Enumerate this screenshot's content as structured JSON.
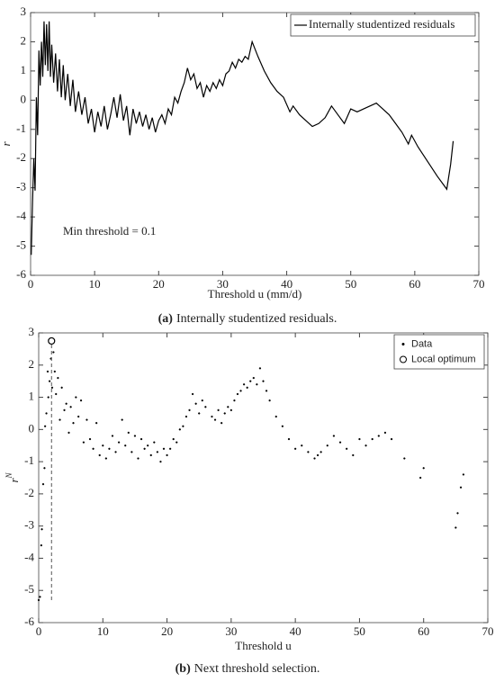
{
  "chart_data": [
    {
      "type": "line",
      "caption_label": "(a)",
      "caption": "Internally studentized residuals.",
      "xlabel": "Threshold u (mm/d)",
      "ylabel": "r",
      "annotation": "Min threshold = 0.1",
      "xlim": [
        0,
        70
      ],
      "xticks": [
        0,
        10,
        20,
        30,
        40,
        50,
        60,
        70
      ],
      "ylim": [
        -6,
        3
      ],
      "yticks": [
        -6,
        -5,
        -4,
        -3,
        -2,
        -1,
        0,
        1,
        2,
        3
      ],
      "legend": "upper right",
      "grid": false,
      "series": [
        {
          "name": "Internally studentized residuals",
          "color": "#000000",
          "x": [
            0.1,
            0.3,
            0.5,
            0.7,
            0.9,
            1.1,
            1.3,
            1.5,
            1.7,
            1.9,
            2.1,
            2.3,
            2.5,
            2.7,
            2.9,
            3.1,
            3.3,
            3.6,
            3.9,
            4.2,
            4.5,
            4.8,
            5.1,
            5.4,
            5.8,
            6.2,
            6.6,
            7,
            7.5,
            8,
            8.5,
            9,
            9.5,
            10,
            10.5,
            11,
            11.5,
            12,
            12.5,
            13,
            13.5,
            14,
            14.5,
            15,
            15.5,
            16,
            16.5,
            17,
            17.5,
            18,
            18.5,
            19,
            19.5,
            20,
            20.5,
            21,
            21.5,
            22,
            22.5,
            23,
            23.5,
            24,
            24.5,
            25,
            25.5,
            26,
            26.5,
            27,
            27.5,
            28,
            28.5,
            29,
            29.5,
            30,
            30.5,
            31,
            31.5,
            32,
            32.5,
            33,
            33.5,
            34,
            34.6,
            35.5,
            36.5,
            37.5,
            38.5,
            39.5,
            40.5,
            41,
            42,
            43,
            44,
            45,
            46,
            47,
            48,
            49,
            50,
            51,
            52,
            53,
            54,
            55,
            56,
            57,
            58,
            59,
            59.5,
            60.5,
            62,
            63.5,
            65,
            65.6,
            66
          ],
          "values": [
            -5.3,
            -3.5,
            -2,
            -3.1,
            0.1,
            -1.2,
            1.7,
            0.5,
            2,
            0.8,
            2.7,
            1.2,
            2.6,
            1,
            2.7,
            0.8,
            1.9,
            0.6,
            1.6,
            0.3,
            1.4,
            0.1,
            1.2,
            0,
            0.9,
            -0.2,
            0.7,
            -0.4,
            0.3,
            -0.5,
            0.1,
            -0.8,
            -0.3,
            -1.1,
            -0.4,
            -0.9,
            -0.2,
            -1,
            -0.5,
            0.1,
            -0.6,
            0.2,
            -0.7,
            -0.2,
            -1.2,
            -0.3,
            -0.8,
            -0.4,
            -0.9,
            -0.5,
            -1,
            -0.6,
            -1.1,
            -0.7,
            -0.5,
            -0.8,
            -0.3,
            -0.5,
            0.1,
            -0.1,
            0.3,
            0.6,
            1.1,
            0.7,
            0.9,
            0.4,
            0.6,
            0.1,
            0.5,
            0.3,
            0.6,
            0.4,
            0.7,
            0.5,
            0.9,
            1,
            1.3,
            1.1,
            1.4,
            1.3,
            1.5,
            1.4,
            2,
            1.5,
            1,
            0.6,
            0.3,
            0.1,
            -0.4,
            -0.2,
            -0.5,
            -0.7,
            -0.9,
            -0.8,
            -0.6,
            -0.2,
            -0.5,
            -0.8,
            -0.3,
            -0.4,
            -0.3,
            -0.2,
            -0.1,
            -0.3,
            -0.5,
            -0.8,
            -1.1,
            -1.5,
            -1.2,
            -1.6,
            -2.1,
            -2.6,
            -3.05,
            -2.2,
            -1.4
          ]
        }
      ]
    },
    {
      "type": "scatter",
      "caption_label": "(b)",
      "caption": "Next threshold selection.",
      "xlabel": "Threshold u",
      "ylabel": "r",
      "ylabel_superscript": "N",
      "xlim": [
        0,
        70
      ],
      "xticks": [
        0,
        10,
        20,
        30,
        40,
        50,
        60,
        70
      ],
      "ylim": [
        -6,
        3
      ],
      "yticks": [
        -6,
        -5,
        -4,
        -3,
        -2,
        -1,
        0,
        1,
        2,
        3
      ],
      "legend": "upper right",
      "grid": false,
      "series": [
        {
          "name": "Data",
          "color": "#000000",
          "marker": "dot",
          "x": [
            0,
            0.2,
            0.4,
            0.5,
            0.7,
            0.9,
            1.0,
            1.2,
            1.4,
            1.5,
            1.7,
            1.9,
            2.1,
            2.3,
            2.5,
            2.7,
            3,
            3.3,
            3.6,
            4,
            4.3,
            4.7,
            5,
            5.4,
            5.8,
            6.2,
            6.6,
            7,
            7.5,
            8,
            8.5,
            9,
            9.5,
            10,
            10.5,
            11,
            11.5,
            12,
            12.5,
            13,
            13.5,
            14,
            14.5,
            15,
            15.5,
            16,
            16.5,
            17,
            17.5,
            18,
            18.5,
            19,
            19.5,
            20,
            20.5,
            21,
            21.5,
            22,
            22.5,
            23,
            23.5,
            24,
            24.5,
            25,
            25.5,
            26,
            27,
            27.5,
            28,
            28.5,
            29,
            29.5,
            30,
            30.5,
            31,
            31.5,
            32,
            32.5,
            33,
            33.5,
            34,
            34.5,
            35,
            35.5,
            36,
            37,
            38,
            39,
            40,
            41,
            42,
            43,
            43.5,
            44,
            45,
            46,
            47,
            48,
            49,
            50,
            51,
            52,
            53,
            54,
            55,
            57,
            59.5,
            60,
            65,
            65.3,
            65.8,
            66.2
          ],
          "values": [
            -5.3,
            -5.2,
            -3.6,
            -3.1,
            -1.7,
            -1.2,
            0.1,
            0.5,
            1.8,
            1.0,
            1.5,
            2.2,
            1.3,
            2.4,
            1.8,
            1.1,
            1.6,
            0.3,
            1.3,
            0.6,
            0.8,
            -0.1,
            0.7,
            0.2,
            1.0,
            0.4,
            0.9,
            -0.4,
            0.3,
            -0.3,
            -0.6,
            0.2,
            -0.8,
            -0.5,
            -0.9,
            -0.6,
            -0.2,
            -0.7,
            -0.4,
            0.3,
            -0.5,
            -0.1,
            -0.7,
            -0.2,
            -0.9,
            -0.3,
            -0.6,
            -0.5,
            -0.8,
            -0.4,
            -0.7,
            -1.0,
            -0.6,
            -0.8,
            -0.6,
            -0.3,
            -0.4,
            0.0,
            0.1,
            0.4,
            0.6,
            1.1,
            0.8,
            0.5,
            0.9,
            0.7,
            0.4,
            0.3,
            0.6,
            0.2,
            0.5,
            0.7,
            0.6,
            0.9,
            1.1,
            1.2,
            1.4,
            1.3,
            1.5,
            1.6,
            1.4,
            1.9,
            1.5,
            1.2,
            0.9,
            0.4,
            0.1,
            -0.3,
            -0.6,
            -0.5,
            -0.7,
            -0.9,
            -0.8,
            -0.7,
            -0.5,
            -0.2,
            -0.4,
            -0.6,
            -0.8,
            -0.3,
            -0.5,
            -0.3,
            -0.2,
            -0.1,
            -0.3,
            -0.9,
            -1.5,
            -1.2,
            -3.05,
            -2.6,
            -1.8,
            -1.4
          ]
        },
        {
          "name": "Local optimum",
          "color": "#000000",
          "marker": "circle",
          "x": [
            2
          ],
          "values": [
            2.75
          ]
        }
      ]
    }
  ]
}
